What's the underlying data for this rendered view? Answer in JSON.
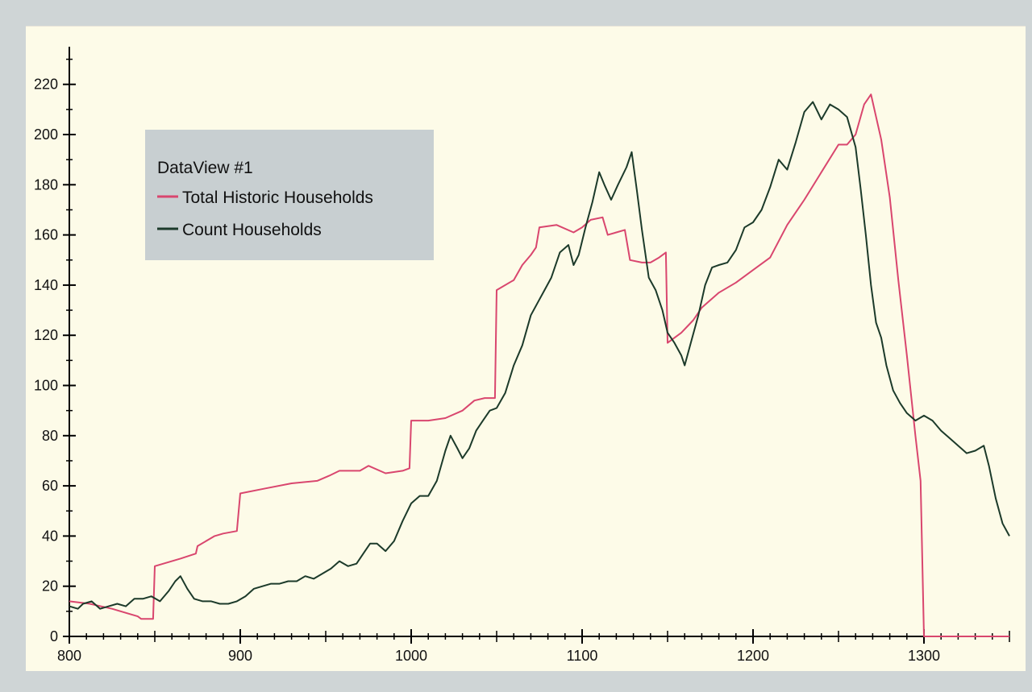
{
  "chart_data": {
    "type": "line",
    "title": "",
    "xlabel": "",
    "ylabel": "",
    "xlim": [
      800,
      1350
    ],
    "ylim": [
      0,
      235
    ],
    "x_ticks": [
      800,
      900,
      1000,
      1100,
      1200,
      1300
    ],
    "y_ticks": [
      0,
      20,
      40,
      60,
      80,
      100,
      120,
      140,
      160,
      180,
      200,
      220
    ],
    "grid": false,
    "legend": {
      "title": "DataView #1",
      "placement": "top-left"
    },
    "series": [
      {
        "name": "Total Historic Households",
        "color": "#d9466e",
        "points": [
          [
            800,
            14
          ],
          [
            812,
            13
          ],
          [
            825,
            11
          ],
          [
            840,
            8
          ],
          [
            842,
            7
          ],
          [
            849,
            7
          ],
          [
            850,
            28
          ],
          [
            865,
            31
          ],
          [
            874,
            33
          ],
          [
            875,
            36
          ],
          [
            885,
            40
          ],
          [
            890,
            41
          ],
          [
            898,
            42
          ],
          [
            900,
            57
          ],
          [
            915,
            59
          ],
          [
            930,
            61
          ],
          [
            945,
            62
          ],
          [
            952,
            64
          ],
          [
            958,
            66
          ],
          [
            970,
            66
          ],
          [
            975,
            68
          ],
          [
            985,
            65
          ],
          [
            995,
            66
          ],
          [
            999,
            67
          ],
          [
            1000,
            86
          ],
          [
            1010,
            86
          ],
          [
            1020,
            87
          ],
          [
            1030,
            90
          ],
          [
            1037,
            94
          ],
          [
            1043,
            95
          ],
          [
            1049,
            95
          ],
          [
            1050,
            138
          ],
          [
            1060,
            142
          ],
          [
            1065,
            148
          ],
          [
            1070,
            152
          ],
          [
            1073,
            155
          ],
          [
            1075,
            163
          ],
          [
            1085,
            164
          ],
          [
            1095,
            161
          ],
          [
            1100,
            163
          ],
          [
            1105,
            166
          ],
          [
            1112,
            167
          ],
          [
            1115,
            160
          ],
          [
            1120,
            161
          ],
          [
            1125,
            162
          ],
          [
            1128,
            150
          ],
          [
            1135,
            149
          ],
          [
            1140,
            149
          ],
          [
            1145,
            151
          ],
          [
            1149,
            153
          ],
          [
            1150,
            117
          ],
          [
            1158,
            121
          ],
          [
            1165,
            126
          ],
          [
            1170,
            131
          ],
          [
            1180,
            137
          ],
          [
            1190,
            141
          ],
          [
            1200,
            146
          ],
          [
            1210,
            151
          ],
          [
            1220,
            164
          ],
          [
            1230,
            174
          ],
          [
            1240,
            185
          ],
          [
            1250,
            196
          ],
          [
            1255,
            196
          ],
          [
            1260,
            200
          ],
          [
            1265,
            212
          ],
          [
            1269,
            216
          ],
          [
            1275,
            198
          ],
          [
            1280,
            175
          ],
          [
            1285,
            142
          ],
          [
            1290,
            112
          ],
          [
            1295,
            80
          ],
          [
            1298,
            62
          ],
          [
            1300,
            0
          ],
          [
            1350,
            0
          ]
        ]
      },
      {
        "name": "Count Households",
        "color": "#1c3a2a",
        "points": [
          [
            800,
            12
          ],
          [
            805,
            11
          ],
          [
            808,
            13
          ],
          [
            813,
            14
          ],
          [
            818,
            11
          ],
          [
            823,
            12
          ],
          [
            828,
            13
          ],
          [
            833,
            12
          ],
          [
            838,
            15
          ],
          [
            843,
            15
          ],
          [
            848,
            16
          ],
          [
            853,
            14
          ],
          [
            858,
            18
          ],
          [
            862,
            22
          ],
          [
            865,
            24
          ],
          [
            869,
            19
          ],
          [
            873,
            15
          ],
          [
            878,
            14
          ],
          [
            883,
            14
          ],
          [
            888,
            13
          ],
          [
            893,
            13
          ],
          [
            898,
            14
          ],
          [
            903,
            16
          ],
          [
            908,
            19
          ],
          [
            913,
            20
          ],
          [
            918,
            21
          ],
          [
            923,
            21
          ],
          [
            928,
            22
          ],
          [
            933,
            22
          ],
          [
            938,
            24
          ],
          [
            943,
            23
          ],
          [
            948,
            25
          ],
          [
            953,
            27
          ],
          [
            958,
            30
          ],
          [
            963,
            28
          ],
          [
            968,
            29
          ],
          [
            972,
            33
          ],
          [
            976,
            37
          ],
          [
            980,
            37
          ],
          [
            985,
            34
          ],
          [
            990,
            38
          ],
          [
            995,
            46
          ],
          [
            1000,
            53
          ],
          [
            1005,
            56
          ],
          [
            1010,
            56
          ],
          [
            1015,
            62
          ],
          [
            1020,
            74
          ],
          [
            1023,
            80
          ],
          [
            1027,
            75
          ],
          [
            1030,
            71
          ],
          [
            1034,
            75
          ],
          [
            1038,
            82
          ],
          [
            1042,
            86
          ],
          [
            1046,
            90
          ],
          [
            1050,
            91
          ],
          [
            1055,
            97
          ],
          [
            1060,
            108
          ],
          [
            1065,
            116
          ],
          [
            1070,
            128
          ],
          [
            1074,
            133
          ],
          [
            1078,
            138
          ],
          [
            1082,
            143
          ],
          [
            1087,
            153
          ],
          [
            1092,
            156
          ],
          [
            1095,
            148
          ],
          [
            1098,
            152
          ],
          [
            1102,
            163
          ],
          [
            1106,
            173
          ],
          [
            1110,
            185
          ],
          [
            1113,
            180
          ],
          [
            1117,
            174
          ],
          [
            1121,
            180
          ],
          [
            1126,
            187
          ],
          [
            1129,
            193
          ],
          [
            1132,
            178
          ],
          [
            1135,
            162
          ],
          [
            1139,
            143
          ],
          [
            1143,
            138
          ],
          [
            1147,
            130
          ],
          [
            1150,
            121
          ],
          [
            1154,
            117
          ],
          [
            1158,
            112
          ],
          [
            1160,
            108
          ],
          [
            1164,
            118
          ],
          [
            1168,
            128
          ],
          [
            1172,
            140
          ],
          [
            1176,
            147
          ],
          [
            1180,
            148
          ],
          [
            1185,
            149
          ],
          [
            1190,
            154
          ],
          [
            1195,
            163
          ],
          [
            1200,
            165
          ],
          [
            1205,
            170
          ],
          [
            1210,
            179
          ],
          [
            1215,
            190
          ],
          [
            1220,
            186
          ],
          [
            1225,
            197
          ],
          [
            1230,
            209
          ],
          [
            1235,
            213
          ],
          [
            1240,
            206
          ],
          [
            1245,
            212
          ],
          [
            1250,
            210
          ],
          [
            1255,
            207
          ],
          [
            1260,
            195
          ],
          [
            1263,
            178
          ],
          [
            1266,
            160
          ],
          [
            1269,
            140
          ],
          [
            1272,
            125
          ],
          [
            1275,
            119
          ],
          [
            1278,
            108
          ],
          [
            1282,
            98
          ],
          [
            1286,
            93
          ],
          [
            1290,
            89
          ],
          [
            1295,
            86
          ],
          [
            1300,
            88
          ],
          [
            1305,
            86
          ],
          [
            1310,
            82
          ],
          [
            1315,
            79
          ],
          [
            1320,
            76
          ],
          [
            1325,
            73
          ],
          [
            1330,
            74
          ],
          [
            1335,
            76
          ],
          [
            1338,
            68
          ],
          [
            1342,
            55
          ],
          [
            1346,
            45
          ],
          [
            1350,
            40
          ]
        ]
      }
    ]
  }
}
